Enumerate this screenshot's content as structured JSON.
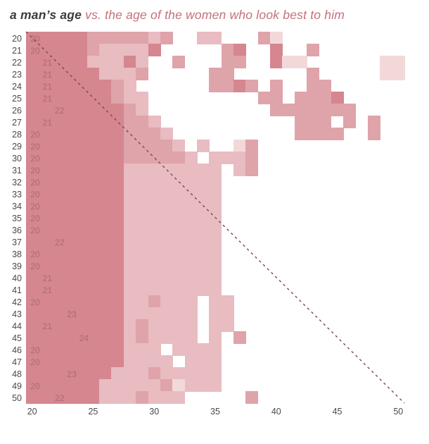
{
  "title": {
    "part1": "a man’s age",
    "part2": " vs. the age of the women who look best to him"
  },
  "chart_data": {
    "type": "heatmap",
    "description": "density heatmap of men's age vs age of women rated best-looking, with per-row peak-age annotation and dashed identity (y=x) diagonal",
    "x_axis": {
      "min": 20,
      "max": 50,
      "ticks": [
        "20",
        "25",
        "30",
        "35",
        "40",
        "45",
        "50"
      ],
      "tick_ages": [
        20,
        25,
        30,
        35,
        40,
        45,
        50
      ]
    },
    "y_axis": {
      "min": 20,
      "max": 50,
      "ticks": [
        "20",
        "21",
        "22",
        "23",
        "24",
        "25",
        "26",
        "27",
        "28",
        "29",
        "30",
        "31",
        "32",
        "33",
        "34",
        "35",
        "36",
        "37",
        "38",
        "39",
        "40",
        "41",
        "42",
        "43",
        "44",
        "45",
        "46",
        "47",
        "48",
        "49",
        "50"
      ]
    },
    "man_ages": [
      20,
      21,
      22,
      23,
      24,
      25,
      26,
      27,
      28,
      29,
      30,
      31,
      32,
      33,
      34,
      35,
      36,
      37,
      38,
      39,
      40,
      41,
      42,
      43,
      44,
      45,
      46,
      47,
      48,
      49,
      50
    ],
    "peak_ages": [
      20,
      20,
      21,
      21,
      21,
      21,
      22,
      21,
      20,
      20,
      20,
      20,
      20,
      20,
      20,
      20,
      20,
      22,
      20,
      20,
      21,
      21,
      20,
      23,
      21,
      24,
      20,
      20,
      23,
      20,
      22
    ],
    "palette": {
      "0": "#ffffff",
      "1": "#f3d8da",
      "2": "#e8bcc1",
      "3": "#dfa3aa",
      "4": "#d5868f"
    },
    "matrix_legend": "rows = man's age 20..50 top to bottom; each char = density level for woman's age 20..50; 0 white, 1 lightest, 2 light, 3 medium, 4 dark",
    "matrix": [
      "4444433333230022000310000000000",
      "4444432222400000340040030000000",
      "4444422242003000330041100000011",
      "4444442223000003300000030000011",
      "4444444320000003343030033000000",
      "4444444322000000000330333400000",
      "4444444432000000000033333330000",
      "4444444433200000000000333030300",
      "4444444433320000000000333300300",
      "4444444433332020013000000000000",
      "4444444433333202223000000000000",
      "4444444422222222023000000000000",
      "4444444422222222000000000000000",
      "4444444422222222000000000000000",
      "4444444422222222000000000000000",
      "4444444422222222000000000000000",
      "4444444422222222000000000000000",
      "4444444422222222000000000000000",
      "4444444422222222000000000000000",
      "4444444422222222000000000000000",
      "4444444422222222000000000000000",
      "4444444422222222000000000000000",
      "4444444422322202200000000000000",
      "4444444422222202200000000000000",
      "4444444423222202200000000000000",
      "4444444423222202030000000000000",
      "4444444422202222000000000000000",
      "4444444422220222000000000000000",
      "4444444222322222000000000000000",
      "4444442222231222000000000000000",
      "4444442223222000003000000000000"
    ],
    "diagonal": {
      "from": [
        20,
        20
      ],
      "to": [
        50,
        50
      ],
      "style": "dashed",
      "color": "#7c454e"
    }
  }
}
